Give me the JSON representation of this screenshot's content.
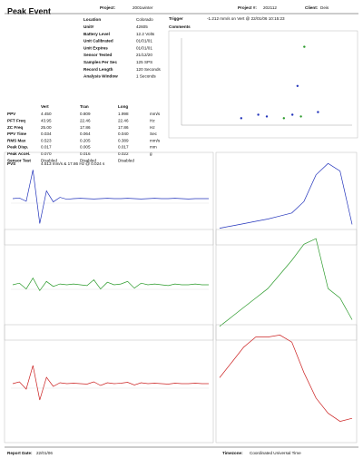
{
  "header": {
    "title": "Peak Event",
    "project_label": "Project:",
    "project": "2001winter",
    "project_no_label": "Project #:",
    "project_no": "202112",
    "client_label": "Client:",
    "client": "Deis"
  },
  "info": [
    [
      "Location",
      "Colorado"
    ],
    [
      "Unit#",
      "42605"
    ],
    [
      "Battery Level",
      "12.2 Volts"
    ],
    [
      "Unit Calibrated",
      "01/01/01"
    ],
    [
      "Unit Expires",
      "01/01/01"
    ],
    [
      "Sensor Tested",
      "21/12/20"
    ],
    [
      "Samples Per Sec",
      "125 SPS"
    ],
    [
      "Record Length",
      "120 Seconds"
    ],
    [
      "Analysis Window",
      "1 Seconds"
    ]
  ],
  "trigger_label": "Trigger",
  "trigger": "-1.212 mm/s on Vert @ 22/01/06 10:15:23",
  "comments_label": "Comments",
  "scatter": {
    "xlim": [
      0,
      1
    ],
    "ylim": [
      0,
      1
    ],
    "points": [
      {
        "x": 0.72,
        "y": 0.9,
        "color": "#2a9a2a"
      },
      {
        "x": 0.68,
        "y": 0.45,
        "color": "#2233bb"
      },
      {
        "x": 0.45,
        "y": 0.12,
        "color": "#2233bb"
      },
      {
        "x": 0.5,
        "y": 0.1,
        "color": "#2233bb"
      },
      {
        "x": 0.6,
        "y": 0.08,
        "color": "#2a9a2a"
      },
      {
        "x": 0.65,
        "y": 0.12,
        "color": "#2233bb"
      },
      {
        "x": 0.7,
        "y": 0.1,
        "color": "#2a9a2a"
      },
      {
        "x": 0.8,
        "y": 0.15,
        "color": "#2233bb"
      },
      {
        "x": 0.35,
        "y": 0.08,
        "color": "#2233bb"
      }
    ]
  },
  "table": {
    "header": [
      "Vert",
      "Tran",
      "Long"
    ],
    "rows": [
      [
        "PPV",
        "4.450",
        "0.809",
        "1.998",
        "mm/s"
      ],
      [
        "PFT Freq",
        "43.95",
        "22.46",
        "22.46",
        "Hz"
      ],
      [
        "ZC Freq",
        "25.00",
        "17.86",
        "17.86",
        "Hz"
      ],
      [
        "PPV Time",
        "0.034",
        "0.064",
        "0.040",
        "Sec"
      ],
      [
        "RMS Max",
        "0.523",
        "0.205",
        "0.389",
        "mm/s"
      ],
      [
        "Peak Disp.",
        "0.017",
        "0.005",
        "0.017",
        "mm"
      ],
      [
        "Peak Accel.",
        "0.070",
        "0.016",
        "0.022",
        "g"
      ],
      [
        "Sensor Test",
        "Disabled",
        "Disabled",
        "Disabled"
      ]
    ]
  },
  "pvs_label": "PVS",
  "pvs": "4.513 mm/s & 17.86 Hz @ 0.024 s",
  "waveforms": [
    {
      "color": "#2233bb",
      "ylim": [
        -5,
        5
      ],
      "values": [
        0,
        0.1,
        -0.4,
        4.4,
        -3.8,
        1.2,
        -0.5,
        0.2,
        -0.1,
        0,
        0.05,
        0,
        -0.05,
        0,
        0.05,
        0,
        0,
        0.05,
        0,
        -0.05,
        0,
        0.05,
        0,
        0,
        0.05,
        0,
        -0.05,
        0,
        0,
        0
      ]
    },
    {
      "color": "#2a9a2a",
      "ylim": [
        -5,
        5
      ],
      "values": [
        0,
        0.2,
        -0.5,
        0.8,
        -0.7,
        0.4,
        -0.2,
        0.1,
        0,
        0.1,
        0,
        -0.1,
        0.6,
        -0.5,
        0.3,
        0,
        0.1,
        0.4,
        -0.4,
        0.2,
        0,
        0.1,
        0,
        -0.1,
        0.1,
        0,
        0,
        0.1,
        0,
        0
      ]
    },
    {
      "color": "#cc2222",
      "ylim": [
        -5,
        5
      ],
      "values": [
        0,
        0.2,
        -0.6,
        2.0,
        -1.8,
        0.7,
        -0.3,
        0.1,
        0,
        0.05,
        0,
        -0.05,
        0.2,
        -0.2,
        0.1,
        0,
        0.05,
        0.15,
        -0.15,
        0.1,
        0,
        0.05,
        0,
        -0.05,
        0.05,
        0,
        0,
        0.05,
        0,
        0
      ]
    }
  ],
  "spectra": [
    {
      "color": "#2233bb",
      "ylim": [
        0,
        1
      ],
      "values": [
        0.1,
        0.13,
        0.16,
        0.19,
        0.22,
        0.26,
        0.3,
        0.45,
        0.8,
        0.95,
        0.85,
        0.15
      ]
    },
    {
      "color": "#2a9a2a",
      "ylim": [
        0,
        1
      ],
      "values": [
        0.05,
        0.15,
        0.25,
        0.35,
        0.45,
        0.6,
        0.75,
        0.92,
        0.98,
        0.45,
        0.35,
        0.12
      ]
    },
    {
      "color": "#cc2222",
      "ylim": [
        0,
        1
      ],
      "values": [
        0.55,
        0.7,
        0.85,
        0.95,
        0.95,
        0.97,
        0.9,
        0.6,
        0.35,
        0.2,
        0.12,
        0.15
      ]
    }
  ],
  "footer": {
    "report_date_label": "Report Date:",
    "report_date": "22/01/06",
    "timezone_label": "Timezone:",
    "timezone": "Coordinated Universal Time"
  }
}
